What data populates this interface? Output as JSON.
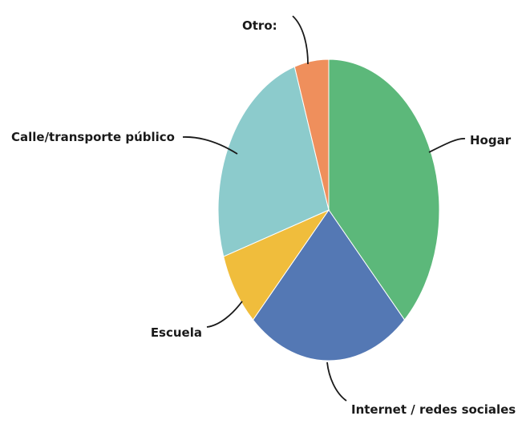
{
  "chart_data": {
    "type": "pie",
    "title": "",
    "slices": [
      {
        "label": "Hogar",
        "value": 38,
        "color": "#5cb87a"
      },
      {
        "label": "Internet / redes sociales",
        "value": 24,
        "color": "#5478b4"
      },
      {
        "label": "Escuela",
        "value": 8,
        "color": "#f0bd3c"
      },
      {
        "label": "Calle/transporte público",
        "value": 25,
        "color": "#8ccbcc"
      },
      {
        "label": "Otro:",
        "value": 5,
        "color": "#ef8f5c"
      }
    ],
    "legend": "none",
    "start_angle_deg": 0,
    "direction": "clockwise"
  }
}
